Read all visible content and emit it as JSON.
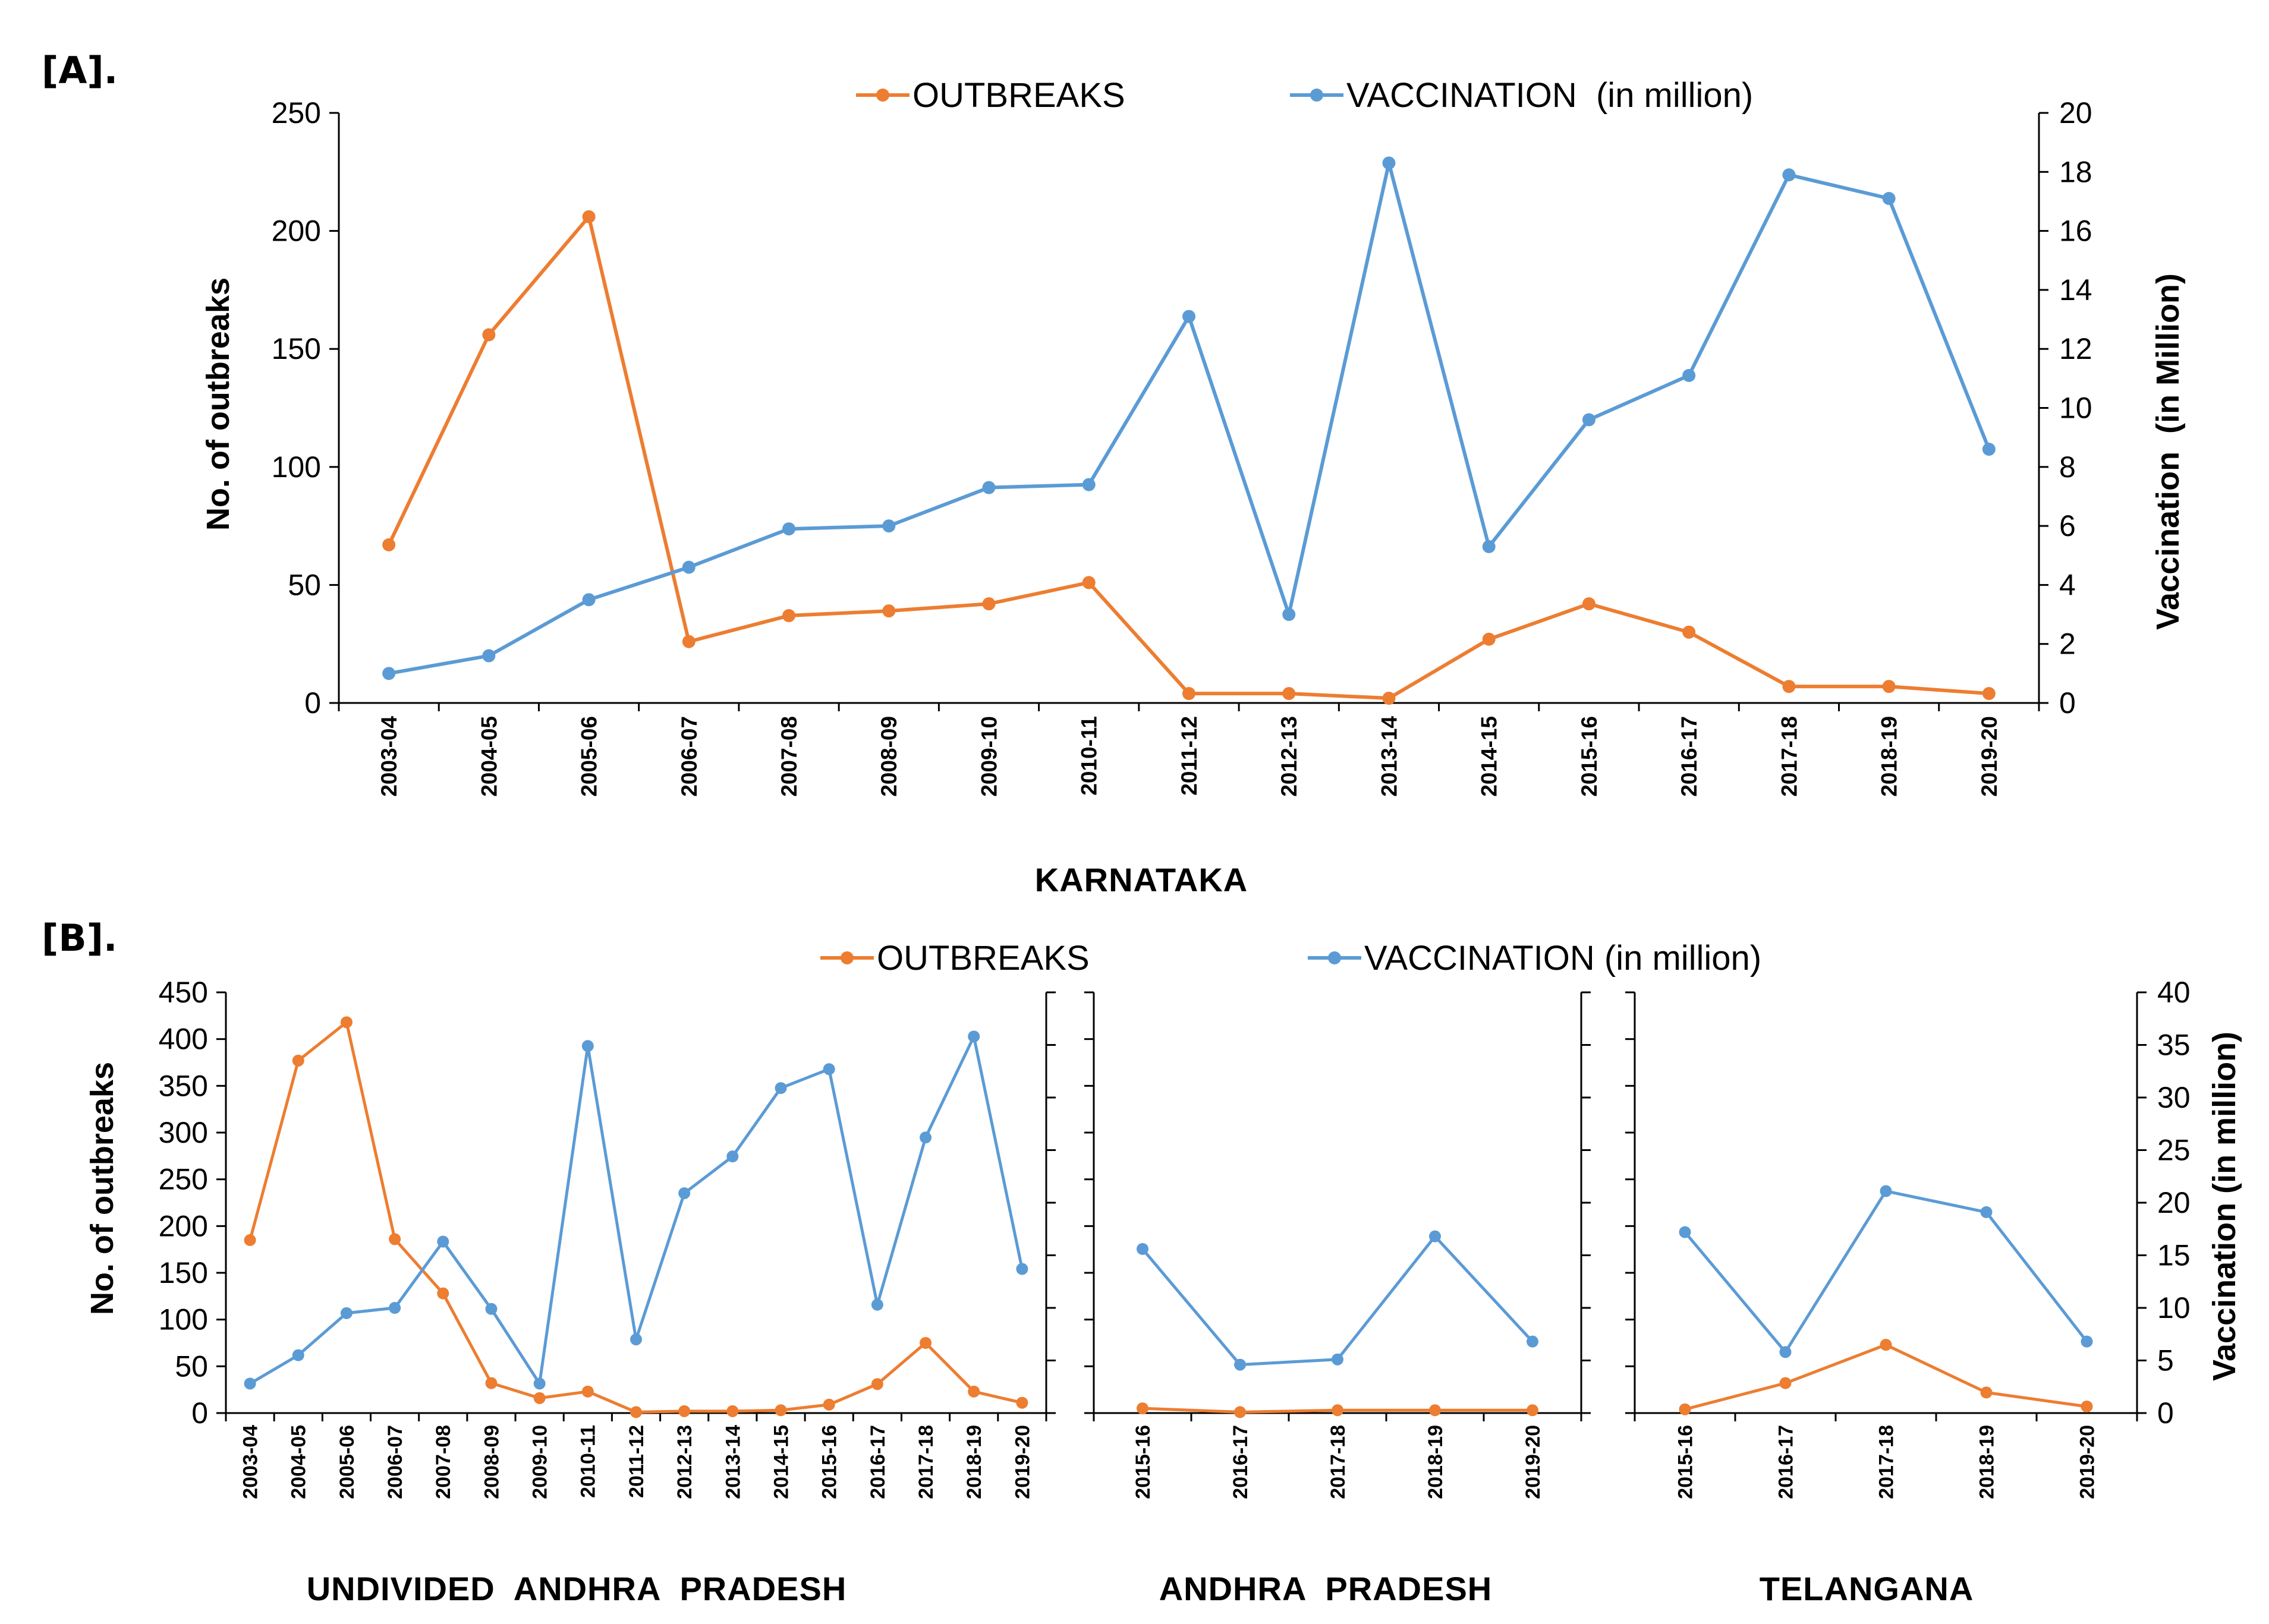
{
  "colors": {
    "outbreaks": "#ED7D31",
    "vaccination": "#5B9BD5",
    "axis": "#000000"
  },
  "panel_a": {
    "tag": "[A].",
    "legend": {
      "outbreaks": "OUTBREAKS",
      "vaccination": "VACCINATION  (in million)"
    },
    "region_title": "KARNATAKA"
  },
  "panel_b": {
    "tag": "[B].",
    "legend": {
      "outbreaks": "OUTBREAKS",
      "vaccination": "VACCINATION (in million)"
    },
    "region_titles": [
      "UNDIVIDED  ANDHRA  PRADESH",
      "ANDHRA  PRADESH",
      "TELANGANA"
    ]
  },
  "chart_data": [
    {
      "type": "line",
      "panel": "[A].",
      "title": "KARNATAKA",
      "xlabel": "KARNATAKA",
      "ylabel": "No. of outbreaks",
      "y2label": "Vaccination  (in Million)",
      "ylim": [
        0,
        250
      ],
      "yticks": [
        0,
        50,
        100,
        150,
        200,
        250
      ],
      "y2lim": [
        0,
        20
      ],
      "y2ticks": [
        0,
        2,
        4,
        6,
        8,
        10,
        12,
        14,
        16,
        18,
        20
      ],
      "categories": [
        "2003-04",
        "2004-05",
        "2005-06",
        "2006-07",
        "2007-08",
        "2008-09",
        "2009-10",
        "2010-11",
        "2011-12",
        "2012-13",
        "2013-14",
        "2014-15",
        "2015-16",
        "2016-17",
        "2017-18",
        "2018-19",
        "2019-20"
      ],
      "series": [
        {
          "name": "OUTBREAKS",
          "axis": "left",
          "values": [
            67,
            156,
            206,
            26,
            37,
            39,
            42,
            51,
            4,
            4,
            2,
            27,
            42,
            30,
            7,
            7,
            4
          ]
        },
        {
          "name": "VACCINATION  (in million)",
          "axis": "right",
          "values": [
            1.0,
            1.6,
            3.5,
            4.6,
            5.9,
            6.0,
            7.3,
            7.4,
            13.1,
            3.0,
            18.3,
            5.3,
            9.6,
            11.1,
            17.9,
            17.1,
            8.6
          ]
        }
      ],
      "legend_position": "top"
    },
    {
      "type": "line",
      "panel": "[B].",
      "title": "UNDIVIDED  ANDHRA  PRADESH",
      "xlabel": "UNDIVIDED  ANDHRA  PRADESH",
      "ylabel": "No. of outbreaks",
      "ylim": [
        0,
        450
      ],
      "yticks": [
        0,
        50,
        100,
        150,
        200,
        250,
        300,
        350,
        400,
        450
      ],
      "y2lim": [
        0,
        40
      ],
      "categories": [
        "2003-04",
        "2004-05",
        "2005-06",
        "2006-07",
        "2007-08",
        "2008-09",
        "2009-10",
        "2010-11",
        "2011-12",
        "2012-13",
        "2013-14",
        "2014-15",
        "2015-16",
        "2016-17",
        "2017-18",
        "2018-19",
        "2019-20"
      ],
      "series": [
        {
          "name": "OUTBREAKS",
          "axis": "left",
          "values": [
            185,
            377,
            418,
            186,
            128,
            32,
            16,
            23,
            1,
            2,
            2,
            3,
            9,
            31,
            75,
            23,
            11
          ]
        },
        {
          "name": "VACCINATION (in million)",
          "axis": "right",
          "values": [
            2.8,
            5.5,
            9.5,
            10.0,
            16.3,
            9.9,
            2.8,
            34.9,
            7.0,
            20.9,
            24.4,
            30.9,
            32.7,
            10.3,
            26.2,
            35.8,
            13.7
          ]
        }
      ],
      "legend_position": "top"
    },
    {
      "type": "line",
      "panel": "[B].",
      "title": "ANDHRA  PRADESH",
      "xlabel": "ANDHRA  PRADESH",
      "ylim": [
        0,
        450
      ],
      "y2lim": [
        0,
        40
      ],
      "categories": [
        "2015-16",
        "2016-17",
        "2017-18",
        "2018-19",
        "2019-20"
      ],
      "series": [
        {
          "name": "OUTBREAKS",
          "axis": "left",
          "values": [
            5,
            1,
            3,
            3,
            3
          ]
        },
        {
          "name": "VACCINATION (in million)",
          "axis": "right",
          "values": [
            15.6,
            4.6,
            5.1,
            16.8,
            6.8
          ]
        }
      ]
    },
    {
      "type": "line",
      "panel": "[B].",
      "title": "TELANGANA",
      "xlabel": "TELANGANA",
      "y2label": "Vaccination (in million)",
      "ylim": [
        0,
        450
      ],
      "y2lim": [
        0,
        40
      ],
      "y2ticks": [
        0,
        5,
        10,
        15,
        20,
        25,
        30,
        35,
        40
      ],
      "categories": [
        "2015-16",
        "2016-17",
        "2017-18",
        "2018-19",
        "2019-20"
      ],
      "series": [
        {
          "name": "OUTBREAKS",
          "axis": "left",
          "values": [
            4,
            32,
            73,
            22,
            7
          ]
        },
        {
          "name": "VACCINATION (in million)",
          "axis": "right",
          "values": [
            17.2,
            5.8,
            21.1,
            19.1,
            6.8
          ]
        }
      ]
    }
  ]
}
